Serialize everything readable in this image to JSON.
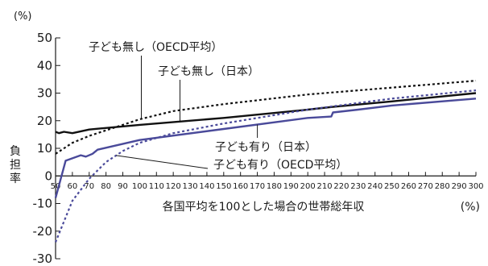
{
  "chart_data": {
    "type": "line",
    "y_unit": "(%)",
    "ylabel": "負担率",
    "xlabel": "各国平均を100とした場合の世帯総年収",
    "x_unit": "(%)",
    "xlim": [
      50,
      300
    ],
    "ylim": [
      -30,
      50
    ],
    "y_ticks": [
      50,
      40,
      30,
      20,
      10,
      0,
      -10,
      -20,
      -30
    ],
    "y_tick_labels": [
      "50",
      "40",
      "30",
      "20",
      "10",
      "0",
      "-10",
      "-20",
      "-30"
    ],
    "x_ticks": [
      50,
      60,
      70,
      80,
      90,
      100,
      110,
      120,
      130,
      140,
      150,
      160,
      170,
      180,
      190,
      200,
      210,
      220,
      230,
      240,
      250,
      260,
      270,
      280,
      290,
      300
    ],
    "x_tick_labels": [
      "50",
      "60",
      "70",
      "80",
      "90",
      "100",
      "110",
      "120",
      "130",
      "140",
      "150",
      "160",
      "170",
      "180",
      "190",
      "200",
      "210",
      "220",
      "230",
      "240",
      "250",
      "260",
      "270",
      "280",
      "290",
      "300"
    ],
    "grid": false,
    "series": [
      {
        "name": "子ども無し（OECD平均）",
        "color": "#111111",
        "style": "dotted",
        "points": [
          [
            50,
            8
          ],
          [
            60,
            12
          ],
          [
            70,
            14.5
          ],
          [
            80,
            16.5
          ],
          [
            90,
            18.5
          ],
          [
            100,
            20.5
          ],
          [
            120,
            23.5
          ],
          [
            150,
            26
          ],
          [
            200,
            29.5
          ],
          [
            250,
            32
          ],
          [
            300,
            34.5
          ]
        ]
      },
      {
        "name": "子ども無し（日本）",
        "color": "#111111",
        "style": "solid",
        "points": [
          [
            50,
            16
          ],
          [
            52,
            15.5
          ],
          [
            55,
            16
          ],
          [
            60,
            15.5
          ],
          [
            70,
            16.8
          ],
          [
            100,
            18.5
          ],
          [
            150,
            21
          ],
          [
            200,
            24
          ],
          [
            215,
            25
          ],
          [
            250,
            27
          ],
          [
            300,
            30
          ]
        ]
      },
      {
        "name": "子ども有り（日本）",
        "color": "#4a4a9a",
        "style": "solid",
        "points": [
          [
            50,
            -8
          ],
          [
            56,
            5.5
          ],
          [
            65,
            7.5
          ],
          [
            68,
            7
          ],
          [
            72,
            8
          ],
          [
            75,
            9.5
          ],
          [
            100,
            13
          ],
          [
            150,
            17
          ],
          [
            200,
            21
          ],
          [
            214,
            21.5
          ],
          [
            215,
            23
          ],
          [
            230,
            24
          ],
          [
            250,
            25.5
          ],
          [
            300,
            28
          ]
        ]
      },
      {
        "name": "子ども有り（OECD平均）",
        "color": "#4a4a9a",
        "style": "dotted",
        "points": [
          [
            50,
            -24
          ],
          [
            60,
            -9
          ],
          [
            70,
            -1
          ],
          [
            80,
            5
          ],
          [
            90,
            9
          ],
          [
            100,
            12
          ],
          [
            120,
            15.5
          ],
          [
            150,
            19
          ],
          [
            200,
            24
          ],
          [
            250,
            28
          ],
          [
            300,
            31
          ]
        ]
      }
    ],
    "annotations": [
      {
        "text": "子ども無し（OECD平均）",
        "series": 0,
        "at_x": 101
      },
      {
        "text": "子ども無し（日本）",
        "series": 1,
        "at_x": 124
      },
      {
        "text": "子ども有り（日本）",
        "series": 2,
        "at_x": 170
      },
      {
        "text": "子ども有り（OECD平均）",
        "series": 3,
        "at_x": 86
      }
    ]
  }
}
